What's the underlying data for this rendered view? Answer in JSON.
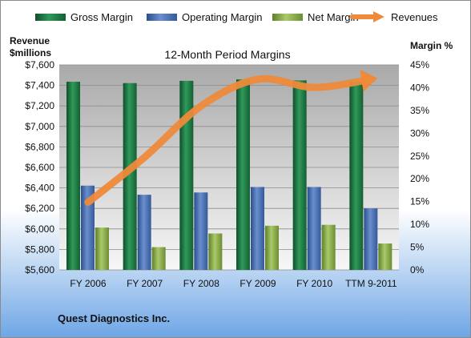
{
  "chart_data": {
    "type": "bar",
    "title": "12-Month Period Margins",
    "categories": [
      "FY 2006",
      "FY 2007",
      "FY 2008",
      "FY 2009",
      "FY 2010",
      "TTM 9-2011"
    ],
    "series": [
      {
        "name": "Gross Margin",
        "axis": "right",
        "unit": "%",
        "color": "#1f7a45",
        "values": [
          41.3,
          41.0,
          41.5,
          41.8,
          41.6,
          41.3
        ]
      },
      {
        "name": "Operating Margin",
        "axis": "right",
        "unit": "%",
        "color": "#4a6fb0",
        "values": [
          18.5,
          16.5,
          17.0,
          18.2,
          18.2,
          13.5
        ]
      },
      {
        "name": "Net Margin",
        "axis": "right",
        "unit": "%",
        "color": "#8db04a",
        "values": [
          9.3,
          5.0,
          8.0,
          9.7,
          9.9,
          5.8
        ]
      },
      {
        "name": "Revenues",
        "axis": "left",
        "type": "line",
        "color": "#ee8a3a",
        "values": [
          6260,
          6700,
          7200,
          7460,
          7380,
          7460
        ]
      }
    ],
    "left_axis": {
      "label_line1": "Revenue",
      "label_line2": "$millions",
      "min": 5600,
      "max": 7600,
      "step": 200,
      "ticks": [
        "$5,600",
        "$5,800",
        "$6,000",
        "$6,200",
        "$6,400",
        "$6,600",
        "$6,800",
        "$7,000",
        "$7,200",
        "$7,400",
        "$7,600"
      ]
    },
    "right_axis": {
      "label": "Margin %",
      "min": 0,
      "max": 45,
      "step": 5,
      "ticks": [
        "0%",
        "5%",
        "10%",
        "15%",
        "20%",
        "25%",
        "30%",
        "35%",
        "40%",
        "45%"
      ]
    },
    "legend_position": "top",
    "grid": "horizontal",
    "footer": "Quest Diagnostics Inc."
  }
}
